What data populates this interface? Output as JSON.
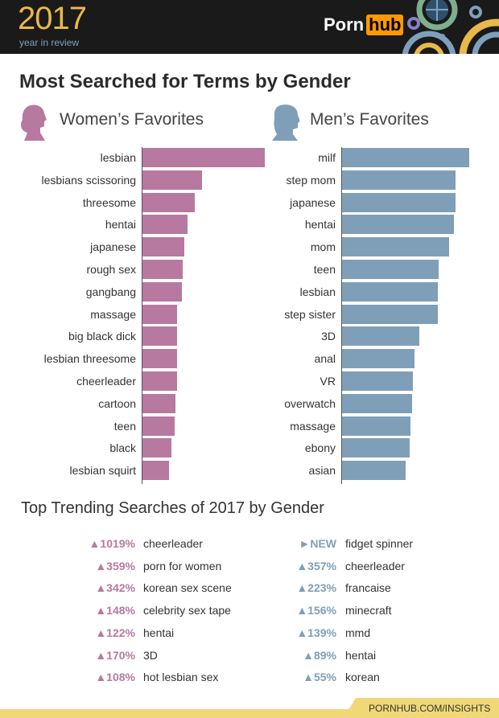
{
  "header": {
    "year": "2017",
    "subtitle": "year in review",
    "logo_left": "Porn",
    "logo_right": "hub"
  },
  "title": "Most Searched for Terms by Gender",
  "colors": {
    "women": "#b7799f",
    "men": "#7f9fb8",
    "accent": "#ff9900",
    "footer": "#f0d877"
  },
  "chart_data": [
    {
      "type": "bar",
      "orientation": "horizontal",
      "title": "Women’s Favorites",
      "icon": "woman-silhouette-icon",
      "categories": [
        "lesbian",
        "lesbians scissoring",
        "threesome",
        "hentai",
        "japanese",
        "rough sex",
        "gangbang",
        "massage",
        "big black dick",
        "lesbian threesome",
        "cheerleader",
        "cartoon",
        "teen",
        "black",
        "lesbian squirt"
      ],
      "values": [
        100,
        49,
        43,
        37,
        34,
        33,
        32,
        28,
        28,
        28,
        28,
        27,
        26,
        24,
        22
      ],
      "xlabel": "",
      "ylabel": "",
      "grid": false
    },
    {
      "type": "bar",
      "orientation": "horizontal",
      "title": "Men’s Favorites",
      "icon": "man-silhouette-icon",
      "categories": [
        "milf",
        "step mom",
        "japanese",
        "hentai",
        "mom",
        "teen",
        "lesbian",
        "step sister",
        "3D",
        "anal",
        "VR",
        "overwatch",
        "massage",
        "ebony",
        "asian"
      ],
      "values": [
        100,
        89,
        89,
        88,
        84,
        76,
        75,
        75,
        61,
        57,
        56,
        55,
        54,
        53,
        50
      ],
      "xlabel": "",
      "ylabel": "",
      "grid": false
    }
  ],
  "trending": {
    "title": "Top Trending Searches of 2017 by Gender",
    "women": [
      {
        "change": "▲1019%",
        "term": "cheerleader"
      },
      {
        "change": "▲359%",
        "term": "porn for women"
      },
      {
        "change": "▲342%",
        "term": "korean sex scene"
      },
      {
        "change": "▲148%",
        "term": "celebrity sex tape"
      },
      {
        "change": "▲122%",
        "term": "hentai"
      },
      {
        "change": "▲170%",
        "term": "3D"
      },
      {
        "change": "▲108%",
        "term": "hot lesbian sex"
      }
    ],
    "men": [
      {
        "change": "►NEW",
        "term": "fidget spinner"
      },
      {
        "change": "▲357%",
        "term": "cheerleader"
      },
      {
        "change": "▲223%",
        "term": "francaise"
      },
      {
        "change": "▲156%",
        "term": "minecraft"
      },
      {
        "change": "▲139%",
        "term": "mmd"
      },
      {
        "change": "▲89%",
        "term": "hentai"
      },
      {
        "change": "▲55%",
        "term": "korean"
      }
    ]
  },
  "footer": {
    "url": "PORNHUB.COM/INSIGHTS"
  }
}
